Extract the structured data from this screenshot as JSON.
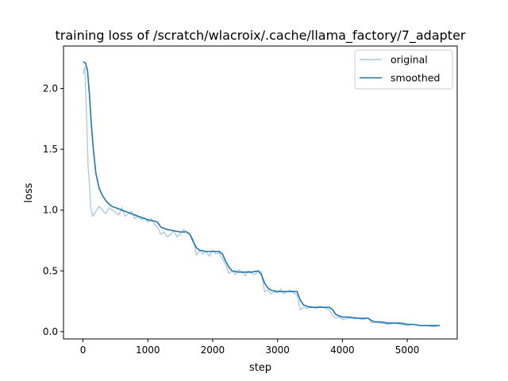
{
  "chart_data": {
    "type": "line",
    "title": "training loss of /scratch/wlacroix/.cache/llama_factory/7_adapter",
    "xlabel": "step",
    "ylabel": "loss",
    "xlim": [
      -300,
      5770
    ],
    "ylim": [
      -0.06,
      2.35
    ],
    "xticks": [
      0,
      1000,
      2000,
      3000,
      4000,
      5000
    ],
    "yticks": [
      0.0,
      0.5,
      1.0,
      1.5,
      2.0
    ],
    "xtick_labels": [
      "0",
      "1000",
      "2000",
      "3000",
      "4000",
      "5000"
    ],
    "ytick_labels": [
      "0.0",
      "0.5",
      "1.0",
      "1.5",
      "2.0"
    ],
    "grid": false,
    "legend_position": "top-right",
    "series": [
      {
        "name": "original",
        "color": "#a6c8e0",
        "x": [
          0,
          30,
          60,
          80,
          100,
          120,
          150,
          200,
          250,
          300,
          350,
          400,
          450,
          500,
          550,
          600,
          650,
          700,
          750,
          800,
          850,
          900,
          950,
          1000,
          1050,
          1100,
          1150,
          1200,
          1250,
          1300,
          1350,
          1400,
          1450,
          1500,
          1550,
          1600,
          1650,
          1700,
          1750,
          1800,
          1850,
          1900,
          1950,
          2000,
          2050,
          2100,
          2150,
          2200,
          2250,
          2300,
          2350,
          2400,
          2450,
          2500,
          2550,
          2600,
          2650,
          2700,
          2750,
          2800,
          2850,
          2900,
          2950,
          3000,
          3050,
          3100,
          3150,
          3200,
          3250,
          3300,
          3350,
          3400,
          3450,
          3500,
          3550,
          3600,
          3650,
          3700,
          3750,
          3800,
          3850,
          3900,
          3950,
          4000,
          4100,
          4200,
          4300,
          4400,
          4450,
          4500,
          4600,
          4700,
          4800,
          4900,
          5000,
          5100,
          5200,
          5300,
          5400,
          5500
        ],
        "y": [
          2.12,
          2.18,
          1.7,
          1.35,
          1.22,
          1.02,
          0.95,
          0.99,
          1.03,
          1.0,
          0.97,
          1.02,
          1.0,
          0.98,
          0.96,
          1.02,
          0.95,
          0.97,
          0.99,
          0.93,
          0.95,
          0.92,
          0.94,
          0.9,
          0.93,
          0.88,
          0.86,
          0.8,
          0.82,
          0.78,
          0.8,
          0.83,
          0.78,
          0.8,
          0.84,
          0.82,
          0.8,
          0.76,
          0.63,
          0.67,
          0.64,
          0.66,
          0.62,
          0.67,
          0.64,
          0.65,
          0.6,
          0.55,
          0.48,
          0.5,
          0.47,
          0.51,
          0.49,
          0.46,
          0.5,
          0.48,
          0.47,
          0.5,
          0.49,
          0.33,
          0.34,
          0.31,
          0.33,
          0.32,
          0.35,
          0.31,
          0.33,
          0.34,
          0.32,
          0.3,
          0.18,
          0.2,
          0.19,
          0.21,
          0.2,
          0.19,
          0.21,
          0.2,
          0.19,
          0.18,
          0.13,
          0.11,
          0.12,
          0.1,
          0.11,
          0.12,
          0.1,
          0.11,
          0.07,
          0.08,
          0.07,
          0.06,
          0.07,
          0.06,
          0.05,
          0.06,
          0.05,
          0.05,
          0.04,
          0.05
        ]
      },
      {
        "name": "smoothed",
        "color": "#1f77b4",
        "x": [
          0,
          40,
          70,
          100,
          130,
          160,
          200,
          250,
          300,
          350,
          400,
          450,
          500,
          550,
          600,
          700,
          800,
          900,
          1000,
          1100,
          1150,
          1200,
          1300,
          1400,
          1500,
          1600,
          1650,
          1700,
          1750,
          1800,
          1900,
          2000,
          2100,
          2150,
          2200,
          2250,
          2300,
          2400,
          2500,
          2600,
          2700,
          2750,
          2800,
          2850,
          2900,
          3000,
          3100,
          3200,
          3300,
          3350,
          3400,
          3500,
          3600,
          3700,
          3800,
          3850,
          3900,
          4000,
          4100,
          4200,
          4300,
          4400,
          4450,
          4500,
          4600,
          4700,
          4800,
          4900,
          5000,
          5100,
          5200,
          5300,
          5400,
          5500
        ],
        "y": [
          2.22,
          2.21,
          2.15,
          1.95,
          1.7,
          1.5,
          1.3,
          1.18,
          1.12,
          1.08,
          1.05,
          1.03,
          1.02,
          1.01,
          1.0,
          0.98,
          0.96,
          0.94,
          0.92,
          0.91,
          0.9,
          0.86,
          0.84,
          0.83,
          0.82,
          0.82,
          0.8,
          0.74,
          0.69,
          0.67,
          0.66,
          0.66,
          0.66,
          0.64,
          0.58,
          0.53,
          0.5,
          0.49,
          0.49,
          0.49,
          0.5,
          0.47,
          0.4,
          0.36,
          0.34,
          0.33,
          0.33,
          0.33,
          0.33,
          0.26,
          0.22,
          0.2,
          0.2,
          0.2,
          0.2,
          0.18,
          0.14,
          0.12,
          0.12,
          0.11,
          0.11,
          0.11,
          0.09,
          0.08,
          0.08,
          0.07,
          0.07,
          0.07,
          0.06,
          0.06,
          0.05,
          0.05,
          0.05,
          0.05
        ]
      }
    ]
  }
}
